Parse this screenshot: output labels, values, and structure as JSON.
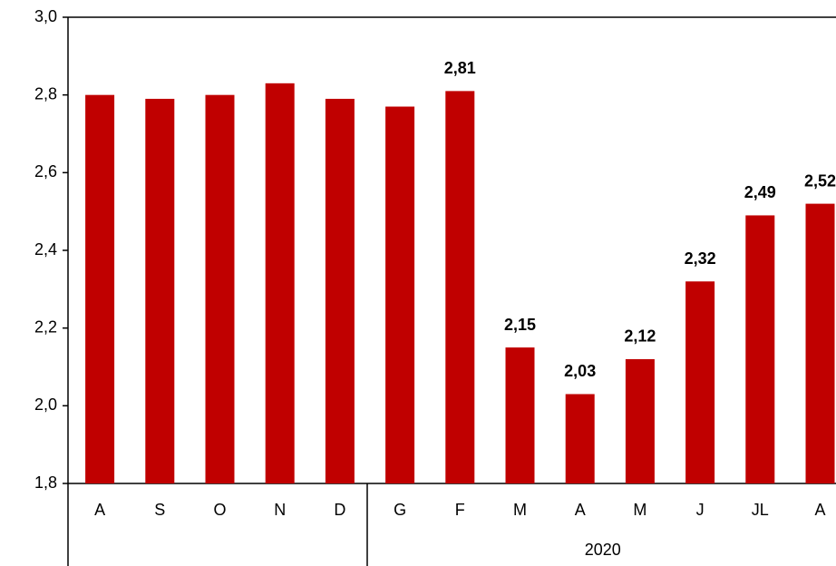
{
  "chart_data": {
    "type": "bar",
    "categories": [
      "A",
      "S",
      "O",
      "N",
      "D",
      "G",
      "F",
      "M",
      "A",
      "M",
      "J",
      "JL",
      "A"
    ],
    "values": [
      2.8,
      2.79,
      2.8,
      2.83,
      2.79,
      2.77,
      2.81,
      2.15,
      2.03,
      2.12,
      2.32,
      2.49,
      2.52
    ],
    "value_labels": [
      null,
      null,
      null,
      null,
      null,
      null,
      "2,81",
      "2,15",
      "2,03",
      "2,12",
      "2,32",
      "2,49",
      "2,52"
    ],
    "groups": [
      {
        "label": null,
        "categories": 5
      },
      {
        "label": "2020",
        "categories": 8
      }
    ],
    "color": "#c00000",
    "ylim": [
      1.8,
      3.0
    ],
    "yticks": [
      {
        "value": 1.8,
        "label": "1,8"
      },
      {
        "value": 2.0,
        "label": "2,0"
      },
      {
        "value": 2.2,
        "label": "2,2"
      },
      {
        "value": 2.4,
        "label": "2,4"
      },
      {
        "value": 2.6,
        "label": "2,6"
      },
      {
        "value": 2.8,
        "label": "2,8"
      },
      {
        "value": 3.0,
        "label": "3,0"
      }
    ],
    "grid": false
  }
}
